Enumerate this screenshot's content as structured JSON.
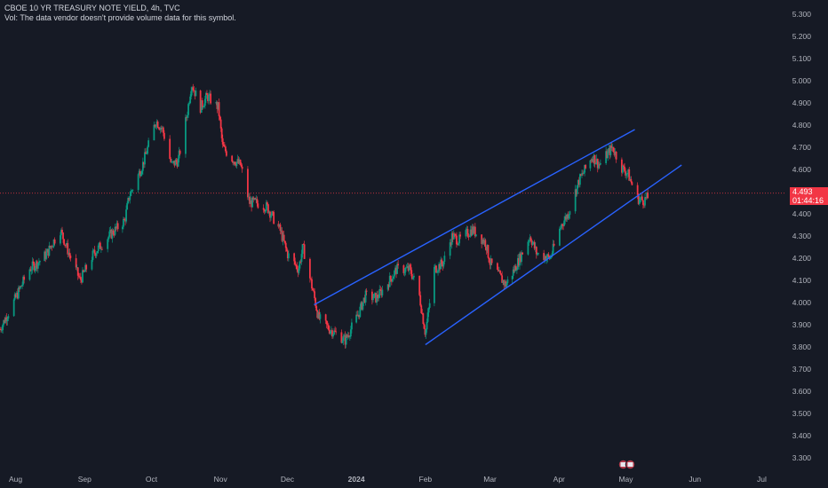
{
  "header": {
    "title": "CBOE 10 YR TREASURY NOTE YIELD, 4h, TVC",
    "volume_note": "Vol: The data vendor doesn't provide volume data for this symbol."
  },
  "price_badge": {
    "price": "4.493",
    "countdown": "01:44:16",
    "color": "#f23645"
  },
  "colors": {
    "background": "#161a25",
    "up": "#089981",
    "down": "#f23645",
    "trendline": "#2962ff",
    "axis_text": "#b2b5be"
  },
  "chart_data": {
    "type": "candlestick",
    "title": "CBOE 10 YR TREASURY NOTE YIELD, 4h, TVC",
    "ylim": [
      3.25,
      5.35
    ],
    "y_ticks": [
      "5.300",
      "5.200",
      "5.100",
      "5.000",
      "4.900",
      "4.800",
      "4.700",
      "4.600",
      "4.500",
      "4.400",
      "4.300",
      "4.200",
      "4.100",
      "4.000",
      "3.900",
      "3.800",
      "3.700",
      "3.600",
      "3.500",
      "3.400",
      "3.300"
    ],
    "x_ticks": [
      "Aug",
      "Sep",
      "Oct",
      "Nov",
      "Dec",
      "2024",
      "Feb",
      "Mar",
      "Apr",
      "May",
      "Jun",
      "Jul"
    ],
    "x_tick_dates": [
      "2023-08-01",
      "2023-09-01",
      "2023-10-01",
      "2023-11-01",
      "2023-12-01",
      "2024-01-01",
      "2024-02-01",
      "2024-03-01",
      "2024-04-01",
      "2024-05-01",
      "2024-06-01",
      "2024-07-01"
    ],
    "xlim": [
      "2023-07-25",
      "2024-07-12"
    ],
    "last_price": 4.493,
    "price_path": [
      [
        "2023-07-25",
        3.88
      ],
      [
        "2023-08-01",
        4.02
      ],
      [
        "2023-08-07",
        4.15
      ],
      [
        "2023-08-11",
        4.18
      ],
      [
        "2023-08-15",
        4.22
      ],
      [
        "2023-08-21",
        4.33
      ],
      [
        "2023-08-25",
        4.22
      ],
      [
        "2023-08-30",
        4.1
      ],
      [
        "2023-09-05",
        4.22
      ],
      [
        "2023-09-11",
        4.29
      ],
      [
        "2023-09-15",
        4.33
      ],
      [
        "2023-09-19",
        4.37
      ],
      [
        "2023-09-21",
        4.48
      ],
      [
        "2023-09-27",
        4.62
      ],
      [
        "2023-10-03",
        4.82
      ],
      [
        "2023-10-06",
        4.78
      ],
      [
        "2023-10-10",
        4.62
      ],
      [
        "2023-10-13",
        4.64
      ],
      [
        "2023-10-17",
        4.85
      ],
      [
        "2023-10-19",
        4.99
      ],
      [
        "2023-10-23",
        4.88
      ],
      [
        "2023-10-26",
        4.93
      ],
      [
        "2023-10-31",
        4.88
      ],
      [
        "2023-11-02",
        4.7
      ],
      [
        "2023-11-06",
        4.65
      ],
      [
        "2023-11-10",
        4.62
      ],
      [
        "2023-11-14",
        4.45
      ],
      [
        "2023-11-17",
        4.45
      ],
      [
        "2023-11-22",
        4.43
      ],
      [
        "2023-11-28",
        4.32
      ],
      [
        "2023-12-01",
        4.22
      ],
      [
        "2023-12-06",
        4.15
      ],
      [
        "2023-12-08",
        4.25
      ],
      [
        "2023-12-13",
        4.03
      ],
      [
        "2023-12-15",
        3.93
      ],
      [
        "2023-12-20",
        3.88
      ],
      [
        "2023-12-27",
        3.83
      ],
      [
        "2024-01-02",
        3.95
      ],
      [
        "2024-01-05",
        4.03
      ],
      [
        "2024-01-10",
        4.02
      ],
      [
        "2024-01-16",
        4.1
      ],
      [
        "2024-01-19",
        4.15
      ],
      [
        "2024-01-25",
        4.15
      ],
      [
        "2024-01-29",
        4.05
      ],
      [
        "2024-02-01",
        3.86
      ],
      [
        "2024-02-05",
        4.15
      ],
      [
        "2024-02-09",
        4.18
      ],
      [
        "2024-02-13",
        4.3
      ],
      [
        "2024-02-16",
        4.28
      ],
      [
        "2024-02-22",
        4.33
      ],
      [
        "2024-02-28",
        4.27
      ],
      [
        "2024-03-01",
        4.18
      ],
      [
        "2024-03-08",
        4.08
      ],
      [
        "2024-03-12",
        4.15
      ],
      [
        "2024-03-19",
        4.3
      ],
      [
        "2024-03-22",
        4.22
      ],
      [
        "2024-03-28",
        4.2
      ],
      [
        "2024-04-02",
        4.35
      ],
      [
        "2024-04-05",
        4.4
      ],
      [
        "2024-04-10",
        4.55
      ],
      [
        "2024-04-16",
        4.66
      ],
      [
        "2024-04-19",
        4.62
      ],
      [
        "2024-04-25",
        4.7
      ],
      [
        "2024-04-29",
        4.61
      ],
      [
        "2024-05-02",
        4.58
      ],
      [
        "2024-05-06",
        4.47
      ],
      [
        "2024-05-09",
        4.46
      ],
      [
        "2024-05-13",
        4.49
      ]
    ],
    "trendlines": [
      {
        "from": [
          "2023-12-13",
          3.99
        ],
        "to": [
          "2024-05-05",
          4.78
        ]
      },
      {
        "from": [
          "2024-02-01",
          3.81
        ],
        "to": [
          "2024-05-26",
          4.62
        ]
      }
    ]
  }
}
